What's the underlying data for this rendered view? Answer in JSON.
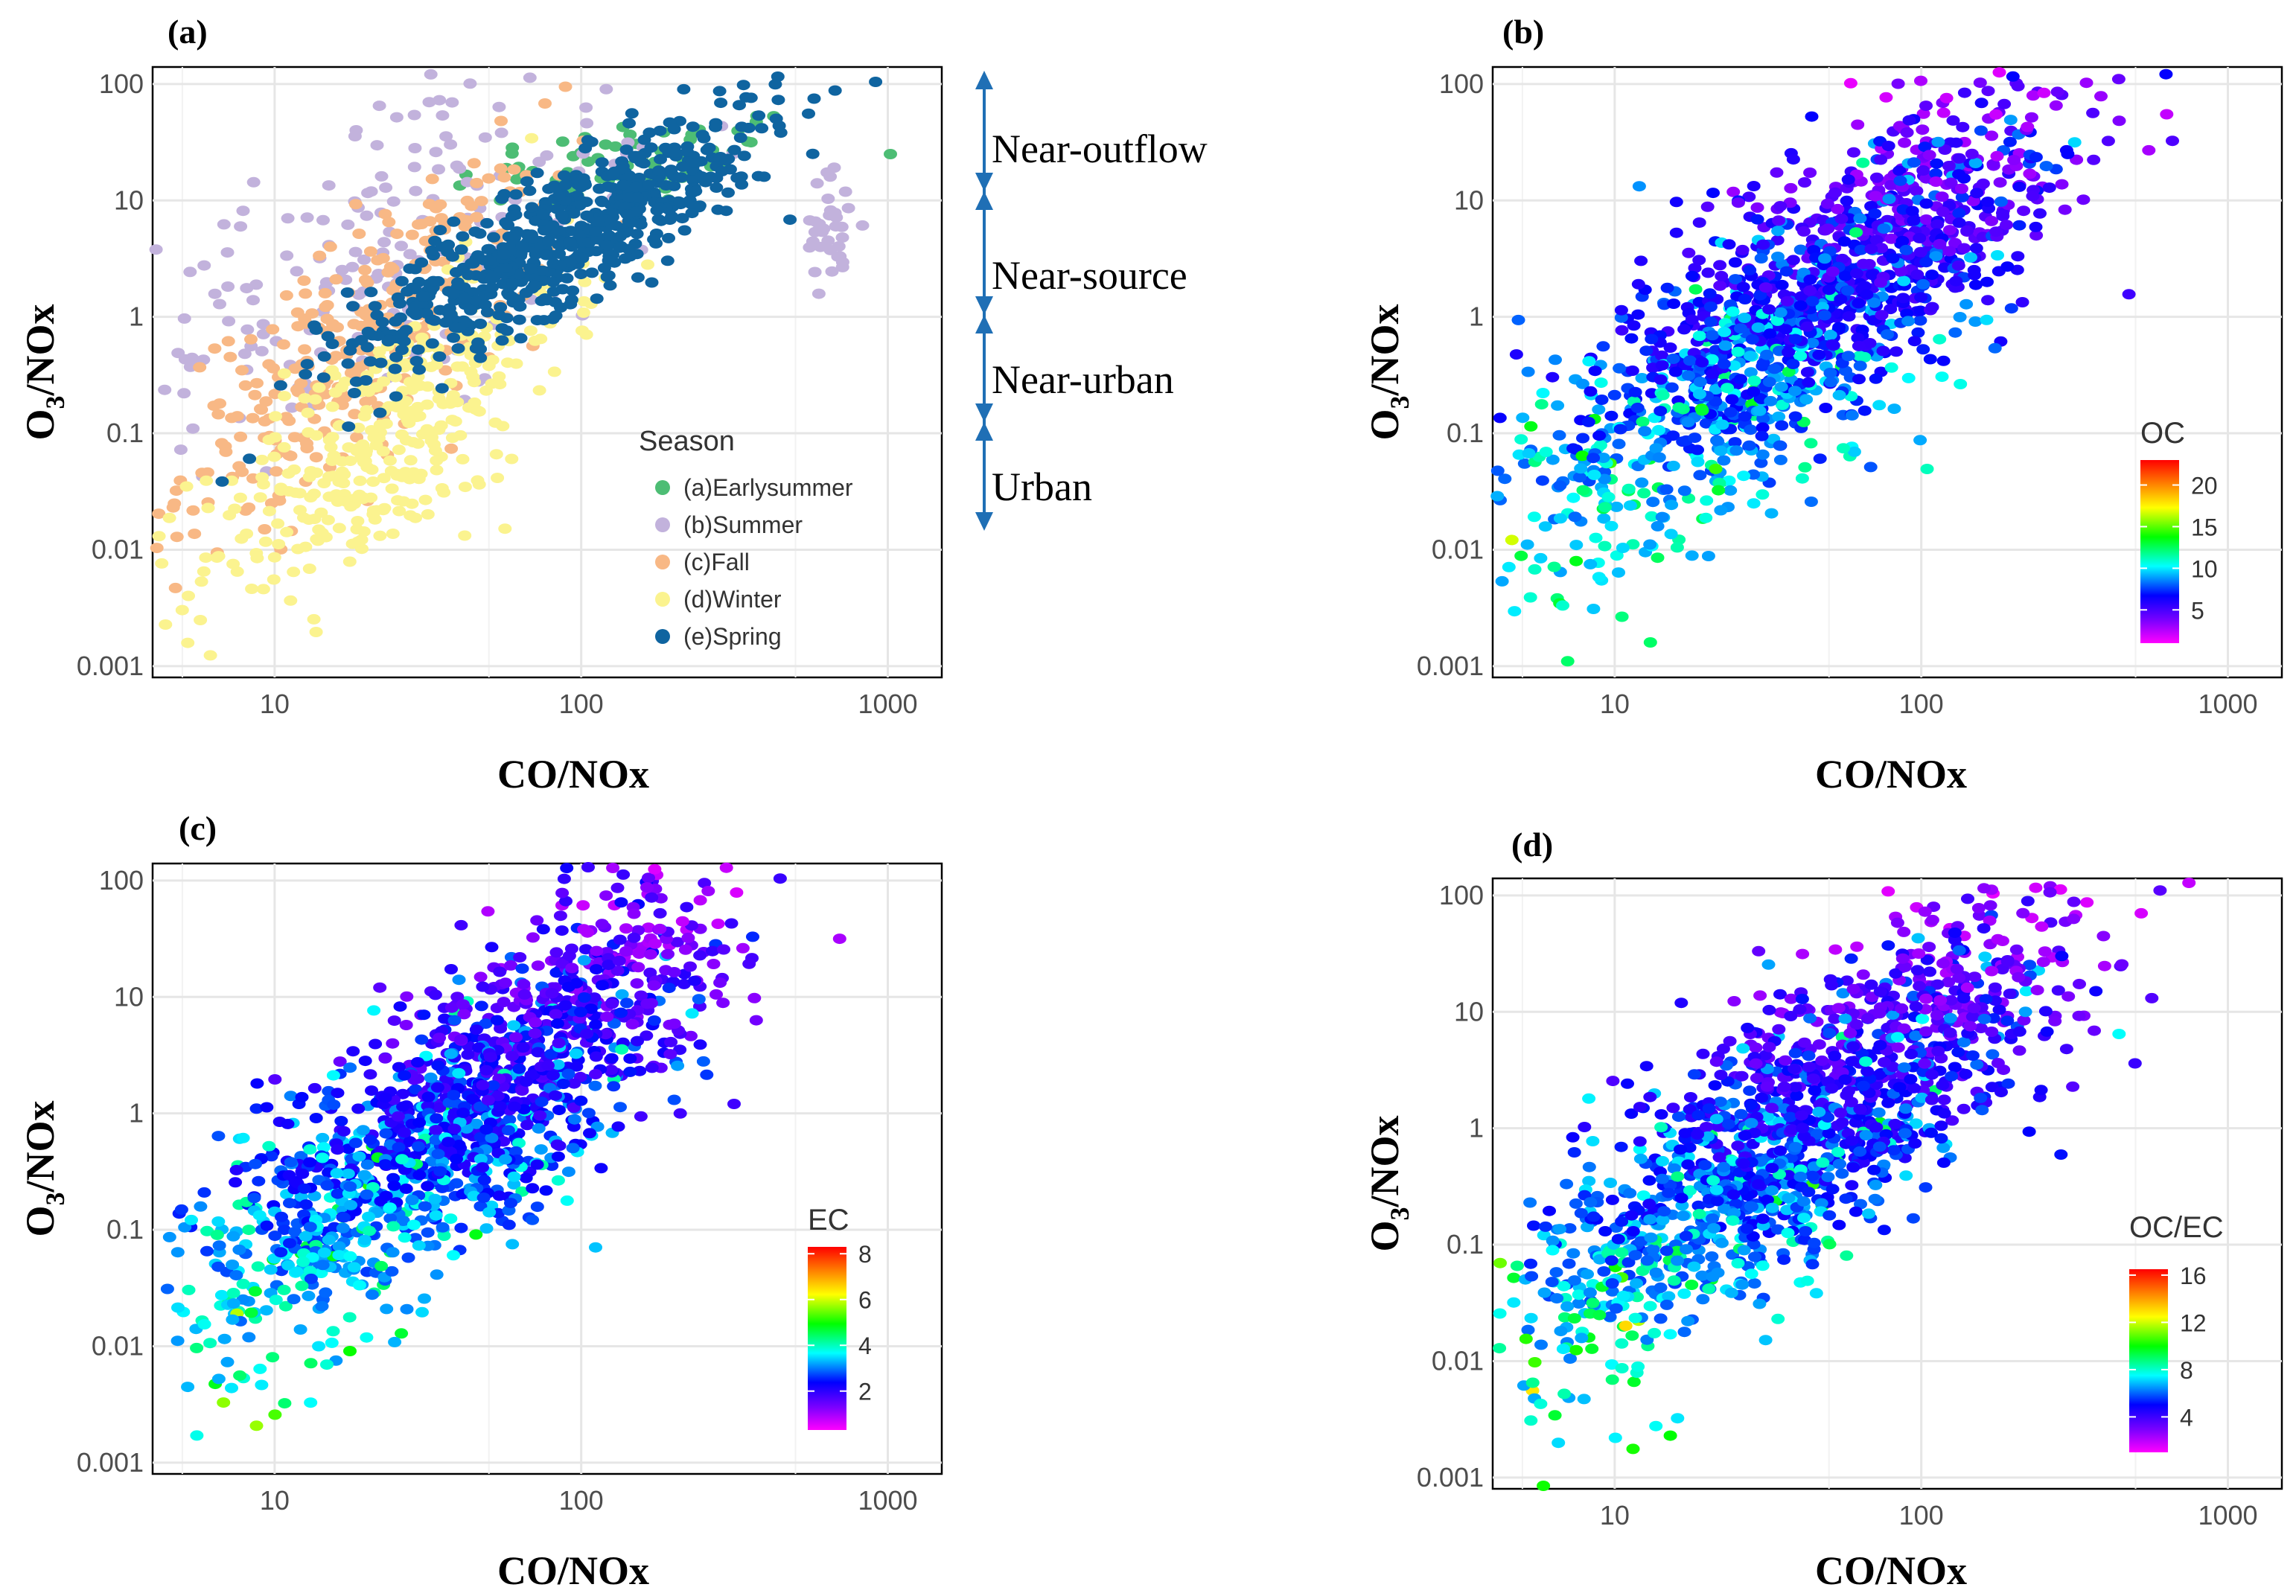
{
  "panels": [
    {
      "id": "a",
      "label": "(a)",
      "xlabel": "CO/NOx",
      "ylabel": "O",
      "ylabel_sub": "3",
      "ylabel_rest": "/NOx",
      "xlim": [
        4,
        1500
      ],
      "ylim": [
        0.0008,
        140
      ],
      "x_ticks": [
        "10",
        "100",
        "1000"
      ],
      "y_ticks": [
        "0.001",
        "0.01",
        "0.1",
        "1",
        "10",
        "100"
      ],
      "legend_type": "categorical",
      "legend_title": "Season",
      "seasons": [
        {
          "name": "(a)Earlysummer",
          "color": "#4dbd74"
        },
        {
          "name": "(b)Summer",
          "color": "#c2b2dc"
        },
        {
          "name": "(c)Fall",
          "color": "#f8b885"
        },
        {
          "name": "(d)Winter",
          "color": "#fbf38f"
        },
        {
          "name": "(e)Spring",
          "color": "#0f64a0"
        }
      ],
      "regimes": [
        "Near-outflow",
        "Near-source",
        "Near-urban",
        "Urban"
      ]
    },
    {
      "id": "b",
      "label": "(b)",
      "xlabel": "CO/NOx",
      "ylabel": "O",
      "ylabel_sub": "3",
      "ylabel_rest": "/NOx",
      "xlim": [
        4,
        1500
      ],
      "ylim": [
        0.0008,
        140
      ],
      "x_ticks": [
        "10",
        "100",
        "1000"
      ],
      "y_ticks": [
        "0.001",
        "0.01",
        "0.1",
        "1",
        "10",
        "100"
      ],
      "legend_type": "colorbar",
      "legend_title": "OC",
      "colorbar_ticks": [
        "5",
        "10",
        "15",
        "20"
      ],
      "colorbar_tick_values": [
        5,
        10,
        15,
        20
      ],
      "colorbar_range": [
        1,
        23
      ]
    },
    {
      "id": "c",
      "label": "(c)",
      "xlabel": "CO/NOx",
      "ylabel": "O",
      "ylabel_sub": "3",
      "ylabel_rest": "/NOx",
      "xlim": [
        4,
        1500
      ],
      "ylim": [
        0.0008,
        140
      ],
      "x_ticks": [
        "10",
        "100",
        "1000"
      ],
      "y_ticks": [
        "0.001",
        "0.01",
        "0.1",
        "1",
        "10",
        "100"
      ],
      "legend_type": "colorbar",
      "legend_title": "EC",
      "colorbar_ticks": [
        "2",
        "4",
        "6",
        "8"
      ],
      "colorbar_tick_values": [
        2,
        4,
        6,
        8
      ],
      "colorbar_range": [
        0.3,
        8.3
      ]
    },
    {
      "id": "d",
      "label": "(d)",
      "xlabel": "CO/NOx",
      "ylabel": "O",
      "ylabel_sub": "3",
      "ylabel_rest": "/NOx",
      "xlim": [
        4,
        1500
      ],
      "ylim": [
        0.0008,
        140
      ],
      "x_ticks": [
        "10",
        "100",
        "1000"
      ],
      "y_ticks": [
        "0.001",
        "0.01",
        "0.1",
        "1",
        "10",
        "100"
      ],
      "legend_type": "colorbar",
      "legend_title": "OC/EC",
      "colorbar_ticks": [
        "4",
        "8",
        "12",
        "16"
      ],
      "colorbar_tick_values": [
        4,
        8,
        12,
        16
      ],
      "colorbar_range": [
        1,
        16.5
      ]
    }
  ],
  "chart_data": [
    {
      "type": "scatter",
      "title": "(a)",
      "xlabel": "CO/NOx",
      "ylabel": "O3/NOx",
      "xscale": "log",
      "yscale": "log",
      "xlim": [
        4,
        1500
      ],
      "ylim": [
        0.0008,
        140
      ],
      "color_by": "Season",
      "series": [
        {
          "name": "(a)Earlysummer",
          "clusters": [
            {
              "x": 150,
              "y": 20,
              "sx": 0.3,
              "sy": 0.22,
              "n": 70,
              "corr": 0.4
            }
          ]
        },
        {
          "name": "(b)Summer",
          "clusters": [
            {
              "x": 20,
              "y": 3,
              "sx": 0.5,
              "sy": 0.9,
              "n": 220,
              "corr": 0.5
            },
            {
              "x": 650,
              "y": 6,
              "sx": 0.05,
              "sy": 0.25,
              "n": 35,
              "corr": 0
            }
          ]
        },
        {
          "name": "(c)Fall",
          "clusters": [
            {
              "x": 20,
              "y": 0.6,
              "sx": 0.3,
              "sy": 0.75,
              "n": 300,
              "corr": 0.75
            }
          ]
        },
        {
          "name": "(d)Winter",
          "clusters": [
            {
              "x": 22,
              "y": 0.08,
              "sx": 0.3,
              "sy": 0.75,
              "n": 360,
              "corr": 0.75
            }
          ]
        },
        {
          "name": "(e)Spring",
          "clusters": [
            {
              "x": 90,
              "y": 5,
              "sx": 0.35,
              "sy": 0.55,
              "n": 650,
              "corr": 0.85
            }
          ]
        }
      ],
      "annotations": [
        "Near-outflow",
        "Near-source",
        "Near-urban",
        "Urban"
      ]
    },
    {
      "type": "scatter",
      "title": "(b)",
      "xlabel": "CO/NOx",
      "ylabel": "O3/NOx",
      "xscale": "log",
      "yscale": "log",
      "xlim": [
        4,
        1500
      ],
      "ylim": [
        0.0008,
        140
      ],
      "color_by": "OC",
      "colorbar": {
        "range": [
          1,
          23
        ],
        "ticks": [
          5,
          10,
          15,
          20
        ]
      },
      "clusters": [
        {
          "x": 40,
          "y": 1,
          "sx": 0.45,
          "sy": 1.0,
          "n": 1500,
          "corr": 0.82
        }
      ]
    },
    {
      "type": "scatter",
      "title": "(c)",
      "xlabel": "CO/NOx",
      "ylabel": "O3/NOx",
      "xscale": "log",
      "yscale": "log",
      "xlim": [
        4,
        1500
      ],
      "ylim": [
        0.0008,
        140
      ],
      "color_by": "EC",
      "colorbar": {
        "range": [
          0.3,
          8.3
        ],
        "ticks": [
          2,
          4,
          6,
          8
        ]
      },
      "clusters": [
        {
          "x": 40,
          "y": 1,
          "sx": 0.45,
          "sy": 1.0,
          "n": 1500,
          "corr": 0.82
        }
      ]
    },
    {
      "type": "scatter",
      "title": "(d)",
      "xlabel": "CO/NOx",
      "ylabel": "O3/NOx",
      "xscale": "log",
      "yscale": "log",
      "xlim": [
        4,
        1500
      ],
      "ylim": [
        0.0008,
        140
      ],
      "color_by": "OC/EC",
      "colorbar": {
        "range": [
          1,
          16.5
        ],
        "ticks": [
          4,
          8,
          12,
          16
        ]
      },
      "clusters": [
        {
          "x": 40,
          "y": 1,
          "sx": 0.45,
          "sy": 1.0,
          "n": 1500,
          "corr": 0.82
        }
      ]
    }
  ]
}
